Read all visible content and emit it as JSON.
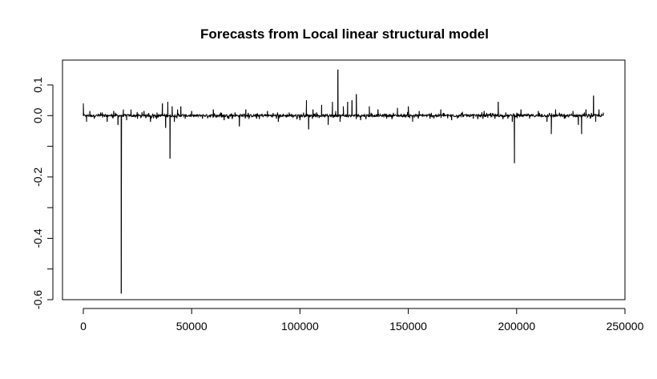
{
  "chart_data": {
    "type": "line",
    "title": "Forecasts from Local linear structural model",
    "xlabel": "",
    "ylabel": "",
    "xlim": [
      0,
      250000
    ],
    "ylim": [
      -0.6,
      0.15
    ],
    "x_ticks": [
      0,
      50000,
      100000,
      150000,
      200000,
      250000
    ],
    "x_tick_labels": [
      "0",
      "50000",
      "100000",
      "150000",
      "200000",
      "250000"
    ],
    "y_ticks": [
      -0.6,
      -0.5,
      -0.4,
      -0.3,
      -0.2,
      -0.1,
      0.0,
      0.1
    ],
    "y_tick_labels": [
      "-0.6",
      "",
      "-0.4",
      "",
      "-0.2",
      "",
      "0.0",
      "0.1"
    ],
    "x_range_data": [
      0,
      240000
    ],
    "grid": false,
    "legend": "none",
    "series": [
      {
        "color": "#000000",
        "baseline": 0.0,
        "x": [
          0,
          1500,
          3000,
          5000,
          8000,
          11000,
          14000,
          16000,
          17500,
          18500,
          20000,
          22000,
          25000,
          28000,
          31000,
          34000,
          36500,
          38000,
          39000,
          40000,
          41000,
          42000,
          43500,
          45000,
          47000,
          50000,
          55000,
          60000,
          65000,
          70000,
          72000,
          75000,
          80000,
          85000,
          90000,
          95000,
          100000,
          103000,
          104000,
          106000,
          110000,
          113000,
          115000,
          116500,
          117500,
          118500,
          120000,
          122000,
          124000,
          126000,
          128000,
          132000,
          136000,
          140000,
          145000,
          150000,
          152000,
          155000,
          160000,
          165000,
          170000,
          175000,
          180000,
          185000,
          190000,
          191500,
          195000,
          198000,
          199000,
          202000,
          206000,
          210000,
          214000,
          216000,
          218000,
          222000,
          226000,
          228500,
          230000,
          232000,
          234000,
          235500,
          236500,
          238000,
          240000
        ],
        "values": [
          0.04,
          -0.02,
          0.015,
          -0.01,
          0.01,
          -0.02,
          0.015,
          -0.03,
          -0.58,
          0.02,
          -0.015,
          0.02,
          -0.01,
          0.015,
          -0.02,
          0.01,
          0.04,
          -0.04,
          0.045,
          -0.14,
          0.03,
          -0.02,
          0.02,
          0.03,
          -0.01,
          0.015,
          -0.01,
          0.02,
          -0.015,
          0.01,
          -0.035,
          0.02,
          -0.01,
          0.015,
          -0.02,
          0.01,
          -0.015,
          0.05,
          -0.045,
          0.02,
          0.035,
          -0.03,
          0.045,
          0.015,
          0.15,
          -0.02,
          0.03,
          0.045,
          0.05,
          0.07,
          -0.015,
          0.03,
          0.02,
          -0.01,
          0.025,
          0.03,
          -0.02,
          0.015,
          -0.01,
          0.02,
          -0.015,
          0.01,
          -0.01,
          0.015,
          -0.01,
          0.045,
          0.01,
          -0.02,
          -0.155,
          0.02,
          -0.01,
          0.015,
          -0.02,
          -0.06,
          0.02,
          -0.01,
          0.015,
          -0.03,
          -0.06,
          0.02,
          -0.01,
          0.065,
          -0.02,
          0.02,
          0.01
        ]
      }
    ]
  }
}
